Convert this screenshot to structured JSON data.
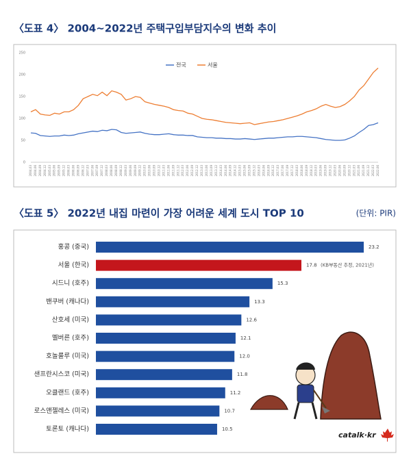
{
  "chart_data": [
    {
      "type": "line",
      "title": "〈도표 4〉 2004~2022년 주택구입부담지수의 변화 추이",
      "categories": [
        "2004.03",
        "2004.06",
        "2004.09",
        "2004.12",
        "2005.03",
        "2005.06",
        "2005.09",
        "2005.12",
        "2006.03",
        "2006.06",
        "2006.09",
        "2006.12",
        "2007.03",
        "2007.06",
        "2007.09",
        "2007.12",
        "2008.03",
        "2008.06",
        "2008.09",
        "2008.12",
        "2009.03",
        "2009.06",
        "2009.09",
        "2009.12",
        "2010.03",
        "2010.06",
        "2010.09",
        "2010.12",
        "2011.03",
        "2011.06",
        "2011.09",
        "2011.12",
        "2012.03",
        "2012.06",
        "2012.09",
        "2012.12",
        "2013.03",
        "2013.06",
        "2013.09",
        "2013.12",
        "2014.03",
        "2014.06",
        "2014.09",
        "2014.12",
        "2015.03",
        "2015.06",
        "2015.09",
        "2015.12",
        "2016.03",
        "2016.06",
        "2016.09",
        "2016.12",
        "2017.03",
        "2017.06",
        "2017.09",
        "2017.12",
        "2018.03",
        "2018.06",
        "2018.09",
        "2018.12",
        "2019.03",
        "2019.06",
        "2019.09",
        "2019.12",
        "2020.03",
        "2020.06",
        "2020.09",
        "2020.12",
        "2021.03",
        "2021.06",
        "2021.09",
        "2021.12",
        "2022.03",
        "2022.06"
      ],
      "series": [
        {
          "name": "전국",
          "color": "#4472c4",
          "values": [
            67,
            66,
            61,
            60,
            59,
            60,
            60,
            62,
            61,
            62,
            65,
            67,
            69,
            71,
            70,
            73,
            72,
            75,
            74,
            68,
            66,
            67,
            68,
            69,
            66,
            64,
            63,
            63,
            64,
            65,
            63,
            62,
            62,
            61,
            61,
            58,
            57,
            56,
            56,
            55,
            55,
            54,
            54,
            53,
            53,
            54,
            53,
            52,
            53,
            54,
            55,
            55,
            56,
            57,
            58,
            58,
            59,
            59,
            58,
            57,
            56,
            54,
            52,
            51,
            50,
            50,
            51,
            55,
            60,
            68,
            75,
            84,
            86,
            90
          ]
        },
        {
          "name": "서울",
          "color": "#ed7d31",
          "values": [
            115,
            120,
            110,
            108,
            107,
            112,
            110,
            115,
            115,
            120,
            130,
            145,
            150,
            155,
            152,
            160,
            152,
            163,
            160,
            155,
            142,
            145,
            150,
            148,
            138,
            135,
            132,
            130,
            128,
            125,
            120,
            118,
            117,
            112,
            110,
            105,
            100,
            98,
            97,
            95,
            93,
            91,
            90,
            89,
            88,
            89,
            90,
            86,
            88,
            90,
            92,
            93,
            95,
            97,
            100,
            103,
            106,
            110,
            115,
            118,
            122,
            128,
            132,
            128,
            125,
            127,
            132,
            140,
            150,
            165,
            175,
            190,
            205,
            215
          ]
        }
      ],
      "ylim": [
        0,
        250
      ],
      "yticks": [
        0,
        50,
        100,
        150,
        200,
        250
      ],
      "grid": false,
      "legend": "top"
    },
    {
      "type": "bar",
      "orientation": "horizontal",
      "title": "〈도표 5〉 2022년 내집 마련이 가장 어려운 세계 도시 TOP 10",
      "unit": "(단위: PIR)",
      "categories": [
        "홍콩 (중국)",
        "서울 (한국)",
        "시드니 (호주)",
        "밴쿠버 (캐나다)",
        "산호세 (미국)",
        "멜버른 (호주)",
        "호놀룰루 (미국)",
        "샌프란시스코 (미국)",
        "오클랜드 (호주)",
        "로스앤젤레스 (미국)",
        "토론토 (캐나다)"
      ],
      "values": [
        23.2,
        17.8,
        15.3,
        13.3,
        12.6,
        12.1,
        12,
        11.8,
        11.2,
        10.7,
        10.5
      ],
      "value_labels": [
        "23.2",
        "17.8",
        "15.3",
        "13.3",
        "12.6",
        "12.1",
        "12.0",
        "11.8",
        "11.2",
        "10.7",
        "10.5"
      ],
      "colors": [
        "#1f4f9f",
        "#c4161c",
        "#1f4f9f",
        "#1f4f9f",
        "#1f4f9f",
        "#1f4f9f",
        "#1f4f9f",
        "#1f4f9f",
        "#1f4f9f",
        "#1f4f9f",
        "#1f4f9f"
      ],
      "annotations": [
        {
          "index": 1,
          "text": "(KB부동산 추정, 2021년)"
        }
      ]
    }
  ],
  "watermark": "catalk·kr"
}
